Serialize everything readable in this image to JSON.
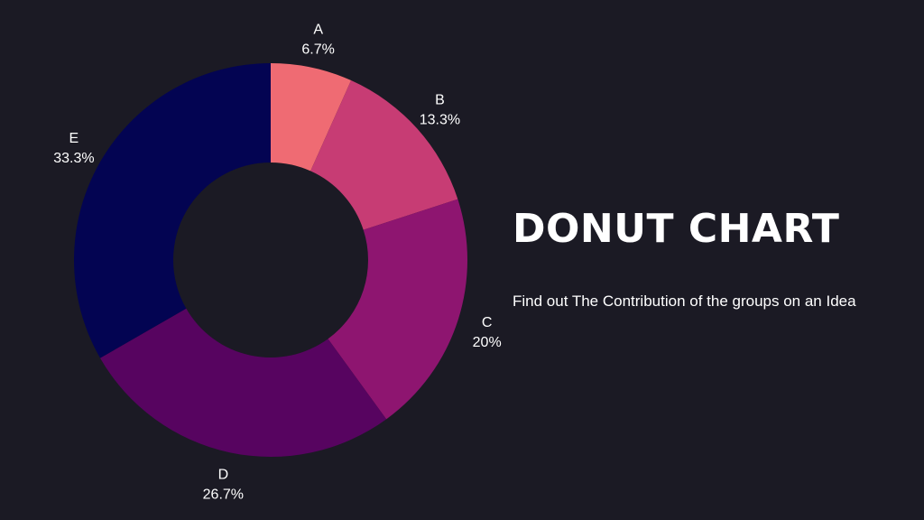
{
  "chart_data": {
    "type": "pie",
    "variant": "donut",
    "title": "DONUT CHART",
    "subtitle": "Find out The Contribution of the groups on an Idea",
    "categories": [
      "A",
      "B",
      "C",
      "D",
      "E"
    ],
    "values": [
      6.7,
      13.3,
      20,
      26.7,
      33.3
    ],
    "value_labels": [
      "6.7%",
      "13.3%",
      "20%",
      "26.7%",
      "33.3%"
    ],
    "colors": [
      "#ef6b73",
      "#c73c74",
      "#8e1570",
      "#570460",
      "#030452"
    ],
    "legend": "none",
    "grid": false
  }
}
